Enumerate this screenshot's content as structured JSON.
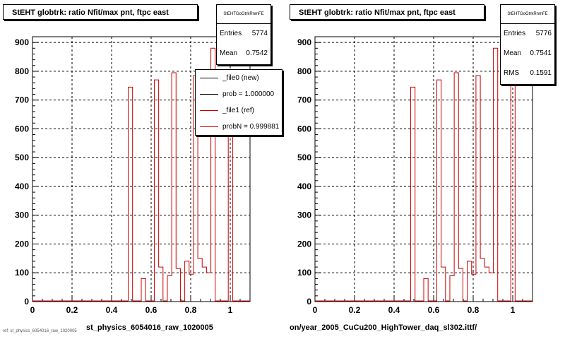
{
  "colors": {
    "ref": "#cc0000",
    "new": "#000000",
    "axis": "#000000",
    "grid": "#000000"
  },
  "panels": [
    {
      "title": "StEHT globtrk: ratio Nfit/max pnt, ftpc east",
      "stats": {
        "name": "StEHTGoGtrkRnmFE",
        "rows": [
          {
            "k": "Entries",
            "v": "5774"
          },
          {
            "k": "Mean",
            "v": "0.7542"
          }
        ]
      },
      "legend": [
        {
          "label": "_file0 (new)",
          "color": "#000000"
        },
        {
          "label": "prob = 1.000000",
          "color": "#000000"
        },
        {
          "label": "_file1 (ref)",
          "color": "#cc0000"
        },
        {
          "label": "probN = 0.999881",
          "color": "#cc0000"
        }
      ],
      "xfile": "st_physics_6054016_raw_1020005"
    },
    {
      "title": "StEHT globtrk: ratio Nfit/max pnt, ftpc east",
      "stats": {
        "name": "StEHTGoGtrkRnmFE",
        "rows": [
          {
            "k": "Entries",
            "v": "5776"
          },
          {
            "k": "Mean",
            "v": "0.7541"
          },
          {
            "k": "RMS",
            "v": "0.1591"
          }
        ]
      },
      "xfile": "on/year_2005_CuCu200_HighTower_daq_sl302.ittf/"
    }
  ],
  "footer": "ref: st_physics_6054016_raw_1020005",
  "chart_data": [
    {
      "type": "bar",
      "title": "StEHT globtrk: ratio Nfit/max pnt, ftpc east",
      "xlim": [
        0,
        1.1
      ],
      "ylim": [
        0,
        920
      ],
      "xticks": [
        0,
        0.2,
        0.4,
        0.6,
        0.8,
        1
      ],
      "yticks": [
        0,
        100,
        200,
        300,
        400,
        500,
        600,
        700,
        800,
        900
      ],
      "grid": true,
      "bin_width": 0.022,
      "series": [
        {
          "name": "_file1 (ref)",
          "bins": [
            [
              0.484,
              745
            ],
            [
              0.506,
              0
            ],
            [
              0.528,
              0
            ],
            [
              0.55,
              80
            ],
            [
              0.572,
              0
            ],
            [
              0.594,
              0
            ],
            [
              0.616,
              770
            ],
            [
              0.638,
              120
            ],
            [
              0.66,
              0
            ],
            [
              0.682,
              90
            ],
            [
              0.704,
              795
            ],
            [
              0.726,
              115
            ],
            [
              0.748,
              0
            ],
            [
              0.77,
              140
            ],
            [
              0.792,
              95
            ],
            [
              0.814,
              785
            ],
            [
              0.836,
              150
            ],
            [
              0.858,
              120
            ],
            [
              0.88,
              100
            ],
            [
              0.902,
              880
            ],
            [
              0.924,
              0
            ],
            [
              0.946,
              0
            ],
            [
              0.968,
              0
            ],
            [
              0.99,
              755
            ]
          ]
        }
      ]
    },
    {
      "type": "bar",
      "title": "StEHT globtrk: ratio Nfit/max pnt, ftpc east",
      "xlim": [
        0,
        1.1
      ],
      "ylim": [
        0,
        920
      ],
      "xticks": [
        0,
        0.2,
        0.4,
        0.6,
        0.8,
        1
      ],
      "yticks": [
        0,
        100,
        200,
        300,
        400,
        500,
        600,
        700,
        800,
        900
      ],
      "grid": true,
      "bin_width": 0.022,
      "series": [
        {
          "name": "_file1 (ref)",
          "bins": [
            [
              0.484,
              745
            ],
            [
              0.506,
              0
            ],
            [
              0.528,
              0
            ],
            [
              0.55,
              80
            ],
            [
              0.572,
              0
            ],
            [
              0.594,
              0
            ],
            [
              0.616,
              770
            ],
            [
              0.638,
              120
            ],
            [
              0.66,
              0
            ],
            [
              0.682,
              90
            ],
            [
              0.704,
              795
            ],
            [
              0.726,
              115
            ],
            [
              0.748,
              0
            ],
            [
              0.77,
              140
            ],
            [
              0.792,
              95
            ],
            [
              0.814,
              785
            ],
            [
              0.836,
              150
            ],
            [
              0.858,
              120
            ],
            [
              0.88,
              100
            ],
            [
              0.902,
              880
            ],
            [
              0.924,
              0
            ],
            [
              0.946,
              0
            ],
            [
              0.968,
              0
            ],
            [
              0.99,
              755
            ]
          ]
        }
      ]
    }
  ]
}
